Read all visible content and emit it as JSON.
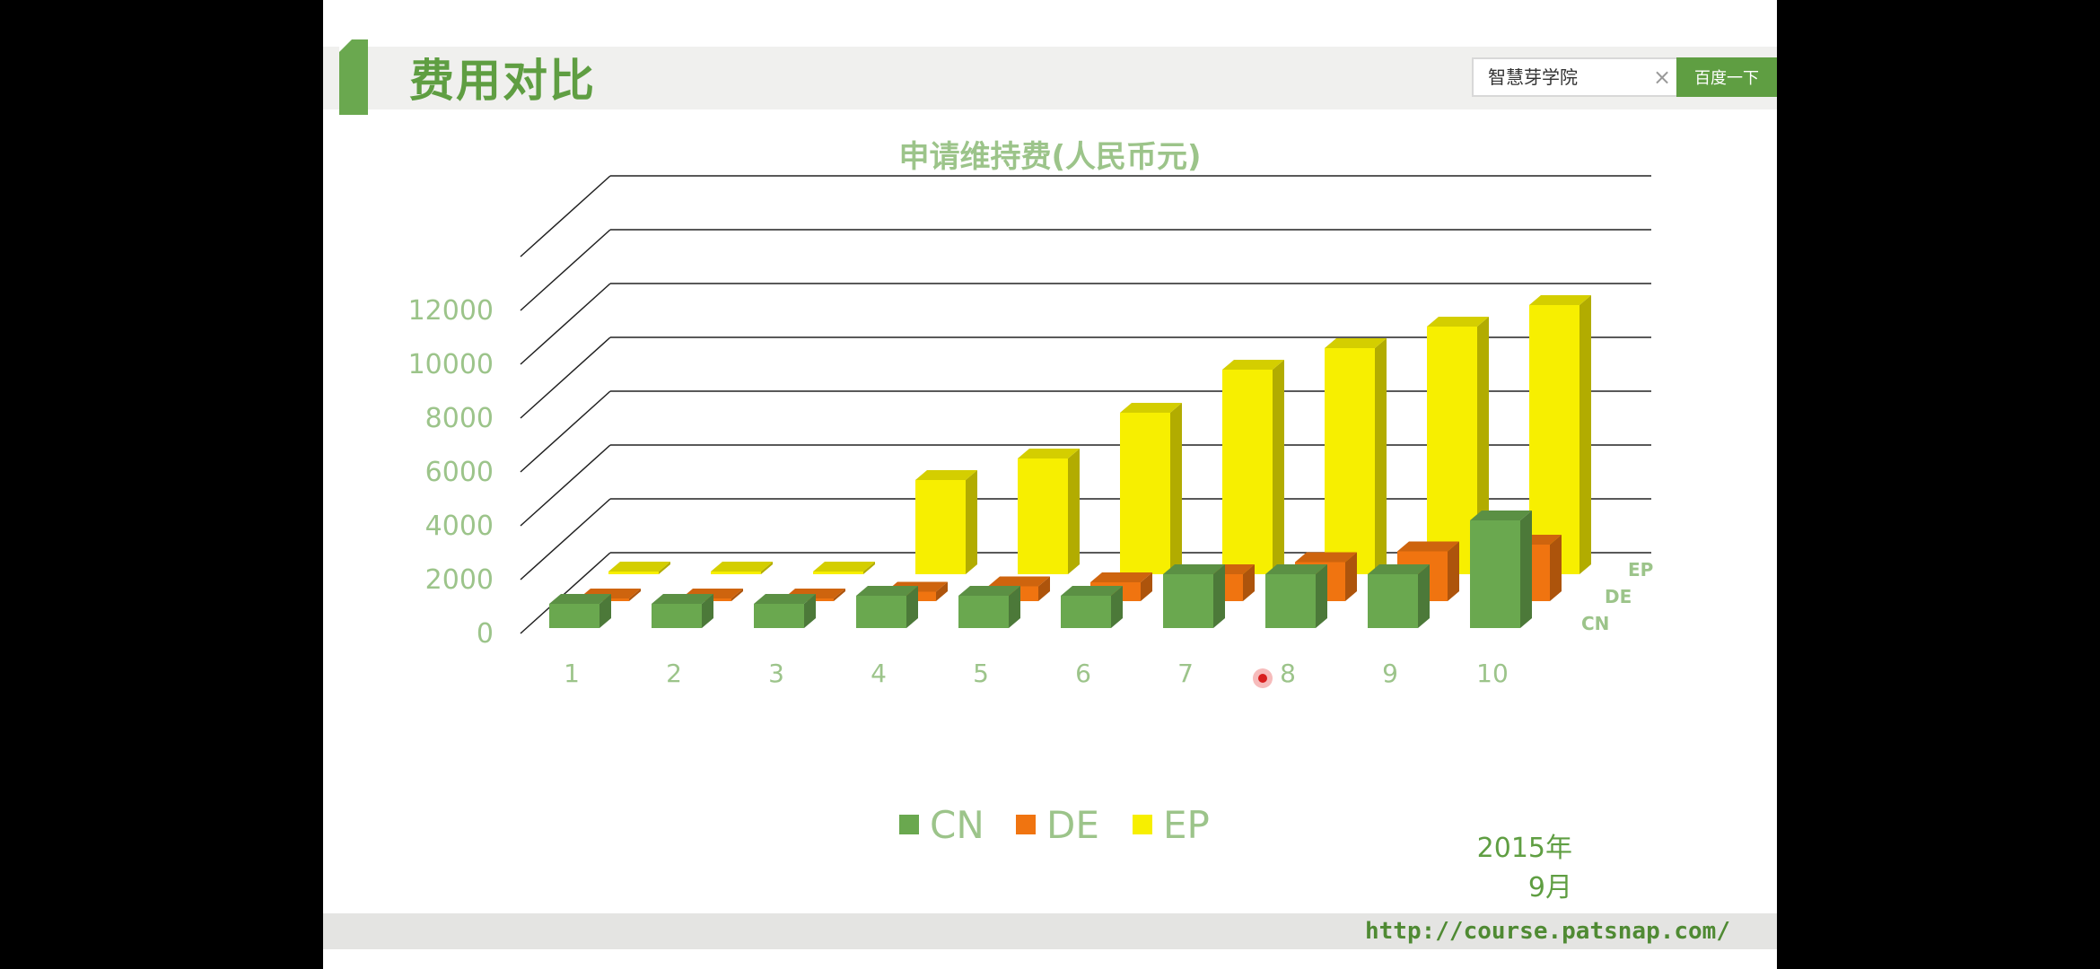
{
  "slide": {
    "title": "费用对比",
    "search": {
      "value": "智慧芽学院",
      "clear_glyph": "×",
      "button_label": "百度一下"
    },
    "date_note": "2015年9月",
    "footer_url": "http://course.patsnap.com/"
  },
  "colors": {
    "accent": "#5f9e42",
    "CN": "#6aa84f",
    "DE": "#f07410",
    "EP": "#f7ef00",
    "axis_text": "#9cc48a"
  },
  "chart_data": {
    "type": "bar",
    "style": "3d-clustered-depth",
    "title": "申请维持费(人民币元)",
    "categories": [
      "1",
      "2",
      "3",
      "4",
      "5",
      "6",
      "7",
      "8",
      "9",
      "10"
    ],
    "series": [
      {
        "name": "CN",
        "values": [
          900,
          900,
          900,
          1200,
          1200,
          1200,
          2000,
          2000,
          2000,
          4000
        ]
      },
      {
        "name": "DE",
        "values": [
          0,
          0,
          0,
          350,
          550,
          700,
          1000,
          1450,
          1850,
          2100
        ]
      },
      {
        "name": "EP",
        "values": [
          0,
          0,
          0,
          3500,
          4300,
          6000,
          7600,
          8400,
          9200,
          10000
        ]
      }
    ],
    "depth_labels": [
      "CN",
      "DE",
      "EP"
    ],
    "yticks": [
      "0",
      "2000",
      "4000",
      "6000",
      "8000",
      "10000",
      "12000"
    ],
    "ylim": [
      0,
      12000
    ],
    "grid": true,
    "legend": [
      "CN",
      "DE",
      "EP"
    ],
    "legend_position": "bottom"
  }
}
